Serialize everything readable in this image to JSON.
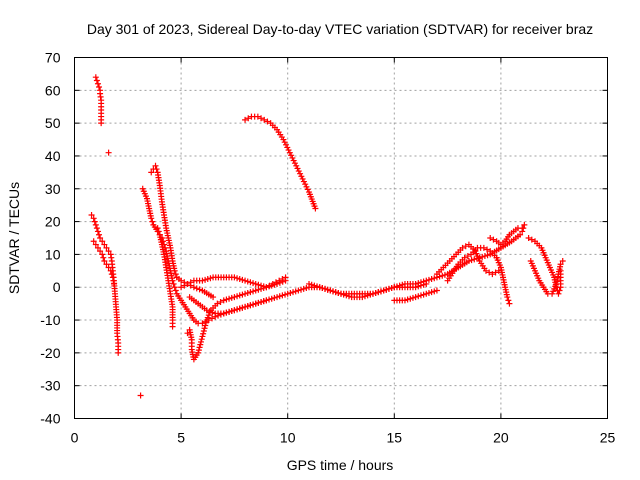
{
  "chart_data": {
    "type": "scatter",
    "title": "Day 301 of 2023, Sidereal Day-to-day VTEC variation (SDTVAR) for receiver braz",
    "xlabel": "GPS time / hours",
    "ylabel": "SDTVAR / TECUs",
    "xlim": [
      0,
      25
    ],
    "ylim": [
      -40,
      70
    ],
    "xticks": [
      0,
      5,
      10,
      15,
      20,
      25
    ],
    "yticks": [
      -40,
      -30,
      -20,
      -10,
      0,
      10,
      20,
      30,
      40,
      50,
      60,
      70
    ],
    "grid": true,
    "marker": "+",
    "color": "#ff0000",
    "series": [
      {
        "name": "trace-1",
        "points": [
          [
            1.0,
            64
          ],
          [
            1.05,
            63
          ],
          [
            1.1,
            62
          ],
          [
            1.15,
            61
          ],
          [
            1.2,
            60
          ],
          [
            1.2,
            59
          ],
          [
            1.25,
            57
          ],
          [
            1.25,
            55
          ],
          [
            1.25,
            52
          ],
          [
            1.25,
            50
          ]
        ]
      },
      {
        "name": "trace-2",
        "points": [
          [
            1.6,
            41
          ]
        ]
      },
      {
        "name": "trace-3",
        "points": [
          [
            0.8,
            22
          ],
          [
            0.9,
            21
          ],
          [
            1.0,
            19
          ],
          [
            1.1,
            17
          ],
          [
            1.2,
            15
          ],
          [
            1.3,
            14
          ],
          [
            1.4,
            13
          ],
          [
            1.5,
            12
          ],
          [
            1.6,
            11
          ],
          [
            1.7,
            10
          ],
          [
            1.75,
            8
          ],
          [
            1.8,
            5
          ],
          [
            1.85,
            2
          ],
          [
            1.9,
            -2
          ],
          [
            1.95,
            -6
          ],
          [
            2.0,
            -10
          ],
          [
            2.0,
            -14
          ],
          [
            2.05,
            -17
          ],
          [
            2.05,
            -20
          ]
        ]
      },
      {
        "name": "trace-4",
        "points": [
          [
            0.9,
            14
          ],
          [
            1.0,
            13
          ],
          [
            1.1,
            12
          ],
          [
            1.2,
            11
          ],
          [
            1.3,
            10
          ],
          [
            1.4,
            8
          ],
          [
            1.5,
            7
          ],
          [
            1.6,
            6
          ],
          [
            1.7,
            5
          ],
          [
            1.8,
            3
          ],
          [
            1.85,
            1
          ]
        ]
      },
      {
        "name": "trace-5",
        "points": [
          [
            3.1,
            -33
          ]
        ]
      },
      {
        "name": "trace-6",
        "points": [
          [
            3.2,
            30
          ],
          [
            3.4,
            27
          ],
          [
            3.5,
            24
          ],
          [
            3.6,
            21
          ],
          [
            3.7,
            19
          ],
          [
            3.9,
            17
          ],
          [
            4.0,
            16
          ],
          [
            4.1,
            15
          ],
          [
            4.2,
            13
          ],
          [
            4.3,
            11
          ],
          [
            4.4,
            8
          ],
          [
            4.5,
            5
          ],
          [
            4.6,
            2
          ],
          [
            4.7,
            0
          ],
          [
            4.8,
            -2
          ],
          [
            5.0,
            -4
          ],
          [
            5.2,
            -6
          ],
          [
            5.4,
            -8
          ],
          [
            5.6,
            -10
          ],
          [
            5.8,
            -11
          ],
          [
            6.0,
            -11
          ],
          [
            6.3,
            -10
          ],
          [
            6.6,
            -9
          ],
          [
            7.0,
            -8
          ],
          [
            7.5,
            -7
          ],
          [
            8.0,
            -6
          ],
          [
            8.5,
            -5
          ],
          [
            9.0,
            -4
          ],
          [
            9.5,
            -3
          ],
          [
            10.0,
            -2
          ],
          [
            10.5,
            -1
          ],
          [
            11.0,
            0
          ],
          [
            11.5,
            0
          ],
          [
            12.0,
            -1
          ],
          [
            12.5,
            -2
          ],
          [
            13.0,
            -2
          ],
          [
            13.5,
            -2
          ],
          [
            14.0,
            -2
          ],
          [
            14.5,
            -1
          ],
          [
            15.0,
            0
          ],
          [
            15.5,
            0
          ],
          [
            16.0,
            0
          ],
          [
            16.5,
            1
          ]
        ]
      },
      {
        "name": "trace-7",
        "points": [
          [
            3.6,
            35
          ],
          [
            3.7,
            36
          ],
          [
            3.8,
            37
          ],
          [
            3.9,
            35
          ],
          [
            4.0,
            31
          ],
          [
            4.1,
            26
          ],
          [
            4.2,
            22
          ],
          [
            4.3,
            18
          ],
          [
            4.4,
            15
          ],
          [
            4.5,
            12
          ],
          [
            4.6,
            8
          ],
          [
            4.7,
            5
          ],
          [
            4.8,
            3
          ],
          [
            5.0,
            2
          ],
          [
            5.3,
            1
          ],
          [
            5.6,
            0
          ],
          [
            6.0,
            -1
          ],
          [
            6.5,
            -3
          ]
        ]
      },
      {
        "name": "trace-8",
        "points": [
          [
            3.9,
            18
          ],
          [
            4.0,
            16
          ],
          [
            4.1,
            13
          ],
          [
            4.2,
            10
          ],
          [
            4.3,
            6
          ],
          [
            4.4,
            2
          ],
          [
            4.5,
            -2
          ],
          [
            4.6,
            -6
          ],
          [
            4.6,
            -10
          ],
          [
            4.6,
            -12
          ]
        ]
      },
      {
        "name": "trace-9",
        "points": [
          [
            5.3,
            -14
          ],
          [
            5.4,
            -13
          ],
          [
            5.5,
            -16
          ],
          [
            5.5,
            -19
          ],
          [
            5.6,
            -22
          ],
          [
            5.8,
            -20
          ],
          [
            6.0,
            -15
          ],
          [
            6.2,
            -10
          ],
          [
            6.4,
            -7
          ],
          [
            6.7,
            -5
          ],
          [
            7.0,
            -4
          ],
          [
            7.5,
            -3
          ],
          [
            8.0,
            -2
          ],
          [
            8.5,
            -1
          ],
          [
            9.0,
            0
          ],
          [
            9.5,
            1
          ],
          [
            9.9,
            2
          ]
        ]
      },
      {
        "name": "trace-10",
        "points": [
          [
            5.0,
            0
          ],
          [
            5.3,
            1
          ],
          [
            5.6,
            2
          ],
          [
            6.0,
            2
          ],
          [
            6.5,
            3
          ],
          [
            7.0,
            3
          ],
          [
            7.5,
            3
          ],
          [
            8.0,
            2
          ],
          [
            8.5,
            1
          ],
          [
            9.0,
            0
          ],
          [
            9.3,
            1
          ],
          [
            9.6,
            2
          ],
          [
            9.9,
            3
          ]
        ]
      },
      {
        "name": "trace-11",
        "points": [
          [
            5.4,
            -3
          ],
          [
            5.8,
            -5
          ],
          [
            6.2,
            -7
          ],
          [
            6.6,
            -8
          ],
          [
            7.0,
            -8
          ],
          [
            7.5,
            -7
          ],
          [
            8.0,
            -6
          ],
          [
            8.5,
            -5
          ],
          [
            9.0,
            -4
          ]
        ]
      },
      {
        "name": "trace-12",
        "points": [
          [
            8.0,
            51
          ],
          [
            8.3,
            52
          ],
          [
            8.6,
            52
          ],
          [
            8.9,
            51
          ],
          [
            9.2,
            50
          ],
          [
            9.5,
            48
          ],
          [
            9.8,
            45
          ],
          [
            10.1,
            41
          ],
          [
            10.4,
            37
          ],
          [
            10.7,
            33
          ],
          [
            11.0,
            29
          ],
          [
            11.3,
            24
          ]
        ]
      },
      {
        "name": "trace-13",
        "points": [
          [
            11.0,
            1
          ],
          [
            11.5,
            0
          ],
          [
            12.0,
            -1
          ],
          [
            12.5,
            -2
          ],
          [
            13.0,
            -3
          ],
          [
            13.5,
            -3
          ],
          [
            14.0,
            -2
          ],
          [
            14.5,
            -1
          ],
          [
            15.0,
            0
          ],
          [
            15.5,
            1
          ],
          [
            16.0,
            1
          ],
          [
            16.5,
            2
          ],
          [
            17.0,
            3
          ],
          [
            17.5,
            4
          ],
          [
            18.0,
            6
          ],
          [
            18.5,
            8
          ],
          [
            19.0,
            9
          ],
          [
            19.5,
            10
          ],
          [
            20.0,
            12
          ],
          [
            20.5,
            14
          ],
          [
            20.9,
            16
          ],
          [
            21.0,
            17
          ],
          [
            21.1,
            19
          ]
        ]
      },
      {
        "name": "trace-14",
        "points": [
          [
            15.0,
            -4
          ],
          [
            15.5,
            -4
          ],
          [
            16.0,
            -3
          ],
          [
            16.5,
            -2
          ],
          [
            17.0,
            -1
          ]
        ]
      },
      {
        "name": "trace-15",
        "points": [
          [
            17.0,
            4
          ],
          [
            17.3,
            6
          ],
          [
            17.6,
            8
          ],
          [
            17.9,
            10
          ],
          [
            18.2,
            12
          ],
          [
            18.5,
            13
          ],
          [
            18.8,
            11
          ],
          [
            19.0,
            8
          ],
          [
            19.3,
            5
          ],
          [
            19.6,
            4
          ],
          [
            19.9,
            5
          ]
        ]
      },
      {
        "name": "trace-16",
        "points": [
          [
            17.5,
            2
          ],
          [
            17.8,
            5
          ],
          [
            18.0,
            7
          ],
          [
            18.3,
            9
          ],
          [
            18.6,
            10
          ],
          [
            18.9,
            12
          ],
          [
            19.2,
            12
          ],
          [
            19.5,
            11
          ],
          [
            19.8,
            9
          ]
        ]
      },
      {
        "name": "trace-17",
        "points": [
          [
            19.5,
            15
          ],
          [
            19.8,
            14
          ],
          [
            20.0,
            13
          ],
          [
            20.2,
            14
          ],
          [
            20.4,
            16
          ],
          [
            20.6,
            17
          ],
          [
            20.8,
            18
          ],
          [
            21.0,
            18
          ]
        ]
      },
      {
        "name": "trace-18",
        "points": [
          [
            19.8,
            9
          ],
          [
            20.0,
            6
          ],
          [
            20.1,
            3
          ],
          [
            20.2,
            0
          ],
          [
            20.3,
            -3
          ],
          [
            20.4,
            -5
          ]
        ]
      },
      {
        "name": "trace-19",
        "points": [
          [
            21.3,
            15
          ],
          [
            21.6,
            14
          ],
          [
            21.9,
            12
          ],
          [
            22.1,
            9
          ],
          [
            22.3,
            6
          ],
          [
            22.5,
            3
          ],
          [
            22.6,
            0
          ],
          [
            22.7,
            -2
          ],
          [
            22.8,
            0
          ],
          [
            22.8,
            3
          ],
          [
            22.8,
            5
          ]
        ]
      },
      {
        "name": "trace-20",
        "points": [
          [
            21.4,
            8
          ],
          [
            21.6,
            5
          ],
          [
            21.8,
            2
          ],
          [
            22.0,
            0
          ],
          [
            22.2,
            -2
          ],
          [
            22.4,
            -2
          ],
          [
            22.6,
            1
          ],
          [
            22.7,
            4
          ],
          [
            22.8,
            7
          ],
          [
            22.9,
            8
          ]
        ]
      }
    ]
  }
}
